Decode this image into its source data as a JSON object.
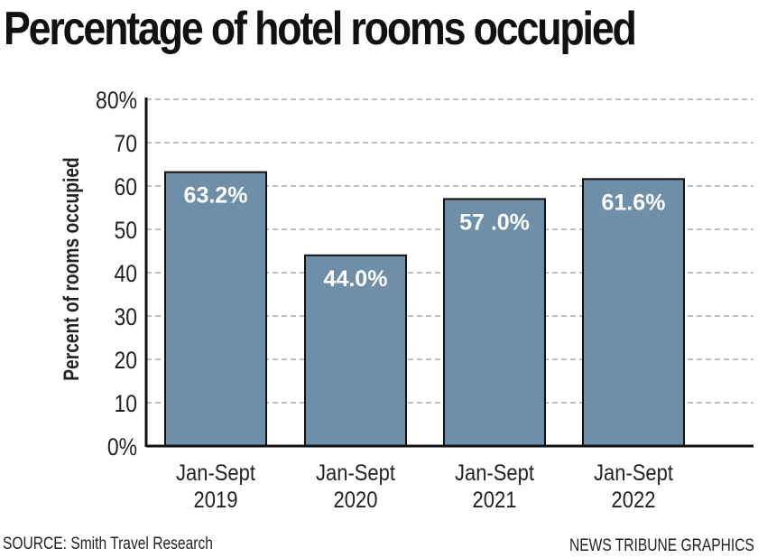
{
  "chart_data": {
    "type": "bar",
    "title": "Percentage of hotel rooms occupied",
    "ylabel": "Percent of rooms occupied",
    "xlabel": "",
    "categories": [
      [
        "Jan-Sept",
        "2019"
      ],
      [
        "Jan-Sept",
        "2020"
      ],
      [
        "Jan-Sept",
        "2021"
      ],
      [
        "Jan-Sept",
        "2022"
      ]
    ],
    "values": [
      63.2,
      44.0,
      57.0,
      61.6
    ],
    "data_labels": [
      "63.2%",
      "44.0%",
      "57 .0%",
      "61.6%"
    ],
    "ylim": [
      0,
      80
    ],
    "yticks": [
      "0%",
      "10",
      "20",
      "30",
      "40",
      "50",
      "60",
      "70",
      "80%"
    ],
    "grid": "horizontal dashed",
    "bar_color": "#6f8fa8"
  },
  "source": "SOURCE: Smith Travel Research",
  "credit": "NEWS TRIBUNE GRAPHICS"
}
